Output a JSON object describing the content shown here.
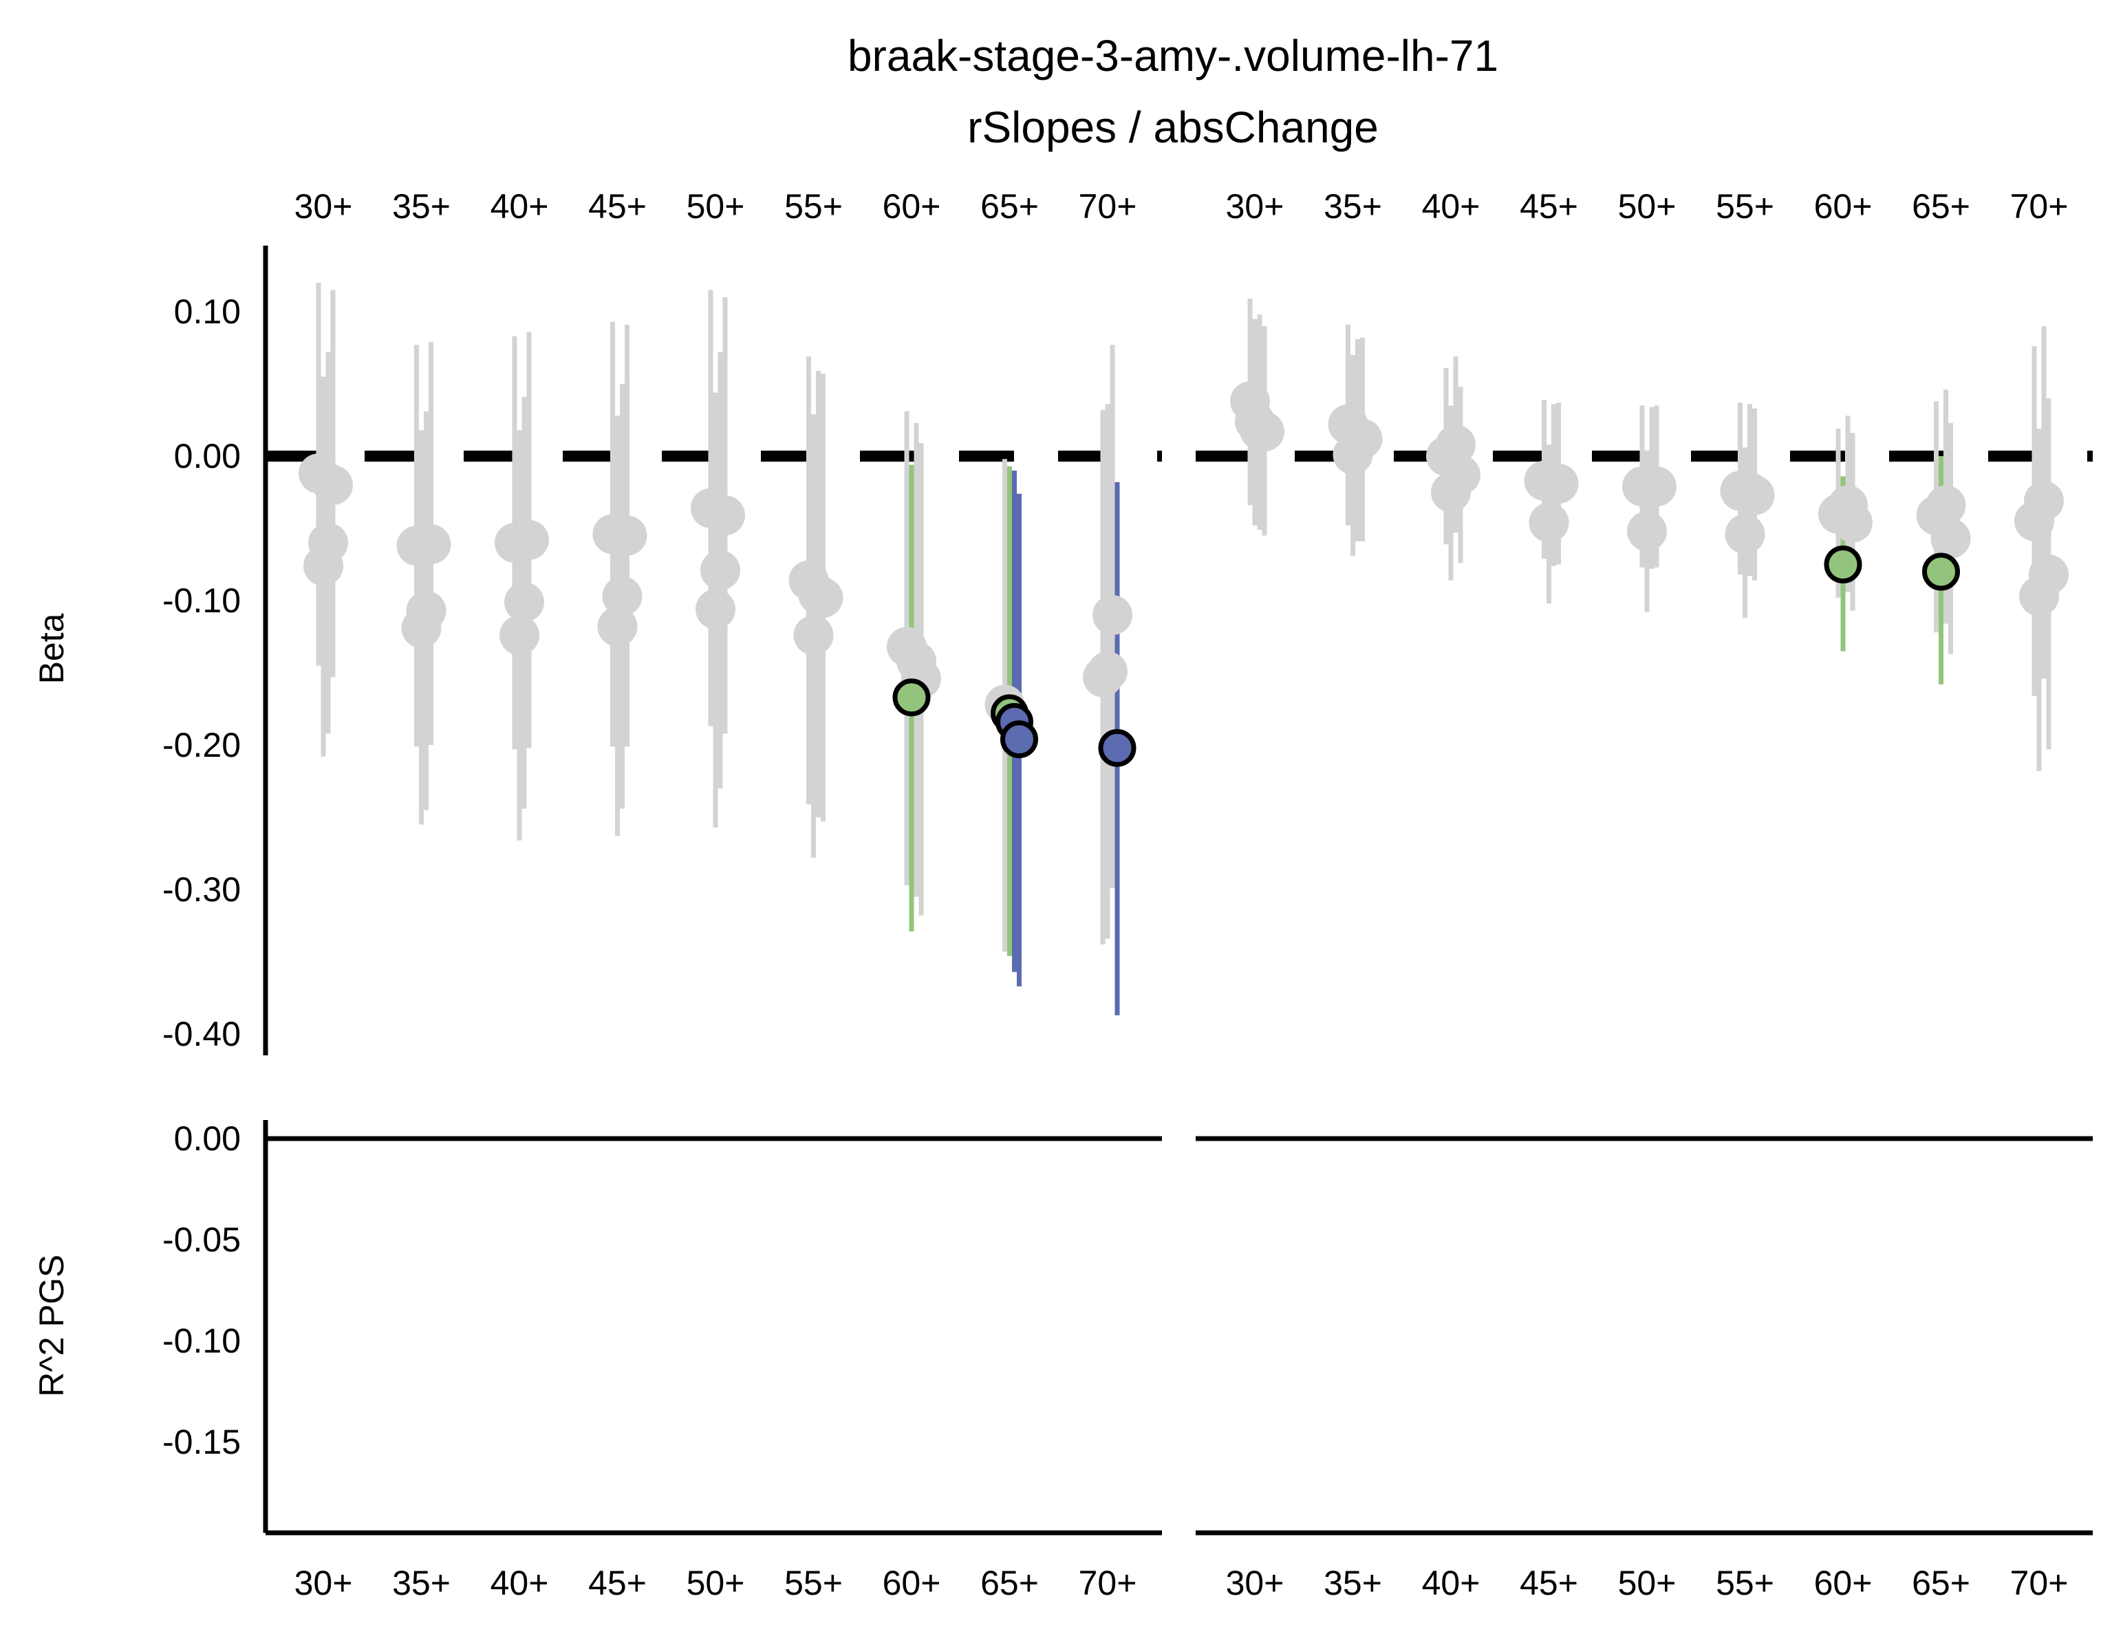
{
  "chart_data": {
    "type": "scatter",
    "title": "braak-stage-3-amy-.volume-lh-71",
    "subtitle": "rSlopes / absChange",
    "categories": [
      "30+",
      "35+",
      "40+",
      "45+",
      "50+",
      "55+",
      "60+",
      "65+",
      "70+"
    ],
    "top_panel": {
      "ylabel": "Beta",
      "ylim": [
        -0.4,
        0.1
      ],
      "yticks": [
        "0.10",
        "0.00",
        "-0.10",
        "-0.20",
        "-0.30",
        "-0.40"
      ],
      "reference_line": 0.0
    },
    "bottom_panel": {
      "ylabel": "R^2 PGS",
      "ylim": [
        -0.15,
        0.0
      ],
      "yticks": [
        "0.00",
        "-0.05",
        "-0.10",
        "-0.15"
      ],
      "values": []
    },
    "colors": {
      "nonsignificant": "#d3d3d3",
      "nominal": "#93c47d",
      "significant": "#5b6bb0",
      "outline": "#000000"
    },
    "facets": [
      {
        "points": [
          {
            "category": "30+",
            "beta": -0.012,
            "low": -0.145,
            "high": 0.12,
            "sig": "none"
          },
          {
            "category": "30+",
            "beta": -0.076,
            "low": -0.208,
            "high": 0.055,
            "sig": "none"
          },
          {
            "category": "30+",
            "beta": -0.06,
            "low": -0.192,
            "high": 0.072,
            "sig": "none"
          },
          {
            "category": "30+",
            "beta": -0.02,
            "low": -0.153,
            "high": 0.115,
            "sig": "none"
          },
          {
            "category": "35+",
            "beta": -0.062,
            "low": -0.201,
            "high": 0.077,
            "sig": "none"
          },
          {
            "category": "35+",
            "beta": -0.119,
            "low": -0.255,
            "high": 0.018,
            "sig": "none"
          },
          {
            "category": "35+",
            "beta": -0.107,
            "low": -0.245,
            "high": 0.031,
            "sig": "none"
          },
          {
            "category": "35+",
            "beta": -0.061,
            "low": -0.2,
            "high": 0.079,
            "sig": "none"
          },
          {
            "category": "40+",
            "beta": -0.06,
            "low": -0.203,
            "high": 0.083,
            "sig": "none"
          },
          {
            "category": "40+",
            "beta": -0.124,
            "low": -0.266,
            "high": 0.018,
            "sig": "none"
          },
          {
            "category": "40+",
            "beta": -0.101,
            "low": -0.244,
            "high": 0.041,
            "sig": "none"
          },
          {
            "category": "40+",
            "beta": -0.058,
            "low": -0.202,
            "high": 0.086,
            "sig": "none"
          },
          {
            "category": "45+",
            "beta": -0.054,
            "low": -0.201,
            "high": 0.093,
            "sig": "none"
          },
          {
            "category": "45+",
            "beta": -0.118,
            "low": -0.263,
            "high": 0.028,
            "sig": "none"
          },
          {
            "category": "45+",
            "beta": -0.097,
            "low": -0.244,
            "high": 0.05,
            "sig": "none"
          },
          {
            "category": "45+",
            "beta": -0.055,
            "low": -0.201,
            "high": 0.091,
            "sig": "none"
          },
          {
            "category": "50+",
            "beta": -0.036,
            "low": -0.187,
            "high": 0.115,
            "sig": "none"
          },
          {
            "category": "50+",
            "beta": -0.106,
            "low": -0.257,
            "high": 0.044,
            "sig": "none"
          },
          {
            "category": "50+",
            "beta": -0.079,
            "low": -0.23,
            "high": 0.072,
            "sig": "none"
          },
          {
            "category": "50+",
            "beta": -0.041,
            "low": -0.192,
            "high": 0.11,
            "sig": "none"
          },
          {
            "category": "55+",
            "beta": -0.086,
            "low": -0.241,
            "high": 0.069,
            "sig": "none"
          },
          {
            "category": "55+",
            "beta": -0.124,
            "low": -0.278,
            "high": 0.029,
            "sig": "none"
          },
          {
            "category": "55+",
            "beta": -0.096,
            "low": -0.25,
            "high": 0.059,
            "sig": "none"
          },
          {
            "category": "55+",
            "beta": -0.098,
            "low": -0.253,
            "high": 0.057,
            "sig": "none"
          },
          {
            "category": "60+",
            "beta": -0.132,
            "low": -0.297,
            "high": 0.031,
            "sig": "none"
          },
          {
            "category": "60+",
            "beta": -0.167,
            "low": -0.329,
            "high": -0.006,
            "sig": "nominal"
          },
          {
            "category": "60+",
            "beta": -0.142,
            "low": -0.305,
            "high": 0.023,
            "sig": "none"
          },
          {
            "category": "60+",
            "beta": -0.154,
            "low": -0.318,
            "high": 0.009,
            "sig": "none"
          },
          {
            "category": "65+",
            "beta": -0.172,
            "low": -0.343,
            "high": -0.002,
            "sig": "none"
          },
          {
            "category": "65+",
            "beta": -0.178,
            "low": -0.346,
            "high": -0.007,
            "sig": "nominal"
          },
          {
            "category": "65+",
            "beta": -0.184,
            "low": -0.357,
            "high": -0.01,
            "sig": "significant"
          },
          {
            "category": "65+",
            "beta": -0.196,
            "low": -0.367,
            "high": -0.026,
            "sig": "significant"
          },
          {
            "category": "70+",
            "beta": -0.153,
            "low": -0.338,
            "high": 0.032,
            "sig": "none"
          },
          {
            "category": "70+",
            "beta": -0.149,
            "low": -0.334,
            "high": 0.036,
            "sig": "none"
          },
          {
            "category": "70+",
            "beta": -0.11,
            "low": -0.299,
            "high": 0.077,
            "sig": "none"
          },
          {
            "category": "70+",
            "beta": -0.202,
            "low": -0.387,
            "high": -0.018,
            "sig": "significant"
          }
        ]
      },
      {
        "points": [
          {
            "category": "30+",
            "beta": 0.038,
            "low": -0.034,
            "high": 0.109,
            "sig": "none"
          },
          {
            "category": "30+",
            "beta": 0.024,
            "low": -0.048,
            "high": 0.095,
            "sig": "none"
          },
          {
            "category": "30+",
            "beta": 0.018,
            "low": -0.051,
            "high": 0.098,
            "sig": "none"
          },
          {
            "category": "30+",
            "beta": 0.017,
            "low": -0.055,
            "high": 0.09,
            "sig": "none"
          },
          {
            "category": "35+",
            "beta": 0.022,
            "low": -0.048,
            "high": 0.091,
            "sig": "none"
          },
          {
            "category": "35+",
            "beta": 0.001,
            "low": -0.069,
            "high": 0.07,
            "sig": "none"
          },
          {
            "category": "35+",
            "beta": 0.011,
            "low": -0.059,
            "high": 0.081,
            "sig": "none"
          },
          {
            "category": "35+",
            "beta": 0.012,
            "low": -0.059,
            "high": 0.082,
            "sig": "none"
          },
          {
            "category": "40+",
            "beta": 0.0,
            "low": -0.061,
            "high": 0.061,
            "sig": "none"
          },
          {
            "category": "40+",
            "beta": -0.025,
            "low": -0.086,
            "high": 0.035,
            "sig": "none"
          },
          {
            "category": "40+",
            "beta": 0.008,
            "low": -0.053,
            "high": 0.069,
            "sig": "none"
          },
          {
            "category": "40+",
            "beta": -0.013,
            "low": -0.074,
            "high": 0.048,
            "sig": "none"
          },
          {
            "category": "45+",
            "beta": -0.017,
            "low": -0.071,
            "high": 0.039,
            "sig": "none"
          },
          {
            "category": "45+",
            "beta": -0.046,
            "low": -0.102,
            "high": 0.008,
            "sig": "none"
          },
          {
            "category": "45+",
            "beta": -0.02,
            "low": -0.076,
            "high": 0.036,
            "sig": "none"
          },
          {
            "category": "45+",
            "beta": -0.019,
            "low": -0.075,
            "high": 0.037,
            "sig": "none"
          },
          {
            "category": "50+",
            "beta": -0.021,
            "low": -0.077,
            "high": 0.035,
            "sig": "none"
          },
          {
            "category": "50+",
            "beta": -0.052,
            "low": -0.108,
            "high": 0.004,
            "sig": "none"
          },
          {
            "category": "50+",
            "beta": -0.022,
            "low": -0.078,
            "high": 0.034,
            "sig": "none"
          },
          {
            "category": "50+",
            "beta": -0.021,
            "low": -0.077,
            "high": 0.035,
            "sig": "none"
          },
          {
            "category": "55+",
            "beta": -0.024,
            "low": -0.082,
            "high": 0.037,
            "sig": "none"
          },
          {
            "category": "55+",
            "beta": -0.054,
            "low": -0.112,
            "high": 0.006,
            "sig": "none"
          },
          {
            "category": "55+",
            "beta": -0.025,
            "low": -0.083,
            "high": 0.036,
            "sig": "none"
          },
          {
            "category": "55+",
            "beta": -0.027,
            "low": -0.086,
            "high": 0.033,
            "sig": "none"
          },
          {
            "category": "60+",
            "beta": -0.04,
            "low": -0.098,
            "high": 0.019,
            "sig": "none"
          },
          {
            "category": "60+",
            "beta": -0.075,
            "low": -0.135,
            "high": -0.014,
            "sig": "nominal"
          },
          {
            "category": "60+",
            "beta": -0.034,
            "low": -0.094,
            "high": 0.028,
            "sig": "none"
          },
          {
            "category": "60+",
            "beta": -0.046,
            "low": -0.107,
            "high": 0.016,
            "sig": "none"
          },
          {
            "category": "65+",
            "beta": -0.041,
            "low": -0.122,
            "high": 0.038,
            "sig": "none"
          },
          {
            "category": "65+",
            "beta": -0.08,
            "low": -0.158,
            "high": 0.0,
            "sig": "nominal"
          },
          {
            "category": "65+",
            "beta": -0.034,
            "low": -0.116,
            "high": 0.046,
            "sig": "none"
          },
          {
            "category": "65+",
            "beta": -0.057,
            "low": -0.137,
            "high": 0.023,
            "sig": "none"
          },
          {
            "category": "70+",
            "beta": -0.045,
            "low": -0.166,
            "high": 0.076,
            "sig": "none"
          },
          {
            "category": "70+",
            "beta": -0.097,
            "low": -0.218,
            "high": 0.019,
            "sig": "none"
          },
          {
            "category": "70+",
            "beta": -0.031,
            "low": -0.154,
            "high": 0.09,
            "sig": "none"
          },
          {
            "category": "70+",
            "beta": -0.082,
            "low": -0.203,
            "high": 0.04,
            "sig": "none"
          }
        ]
      }
    ]
  }
}
